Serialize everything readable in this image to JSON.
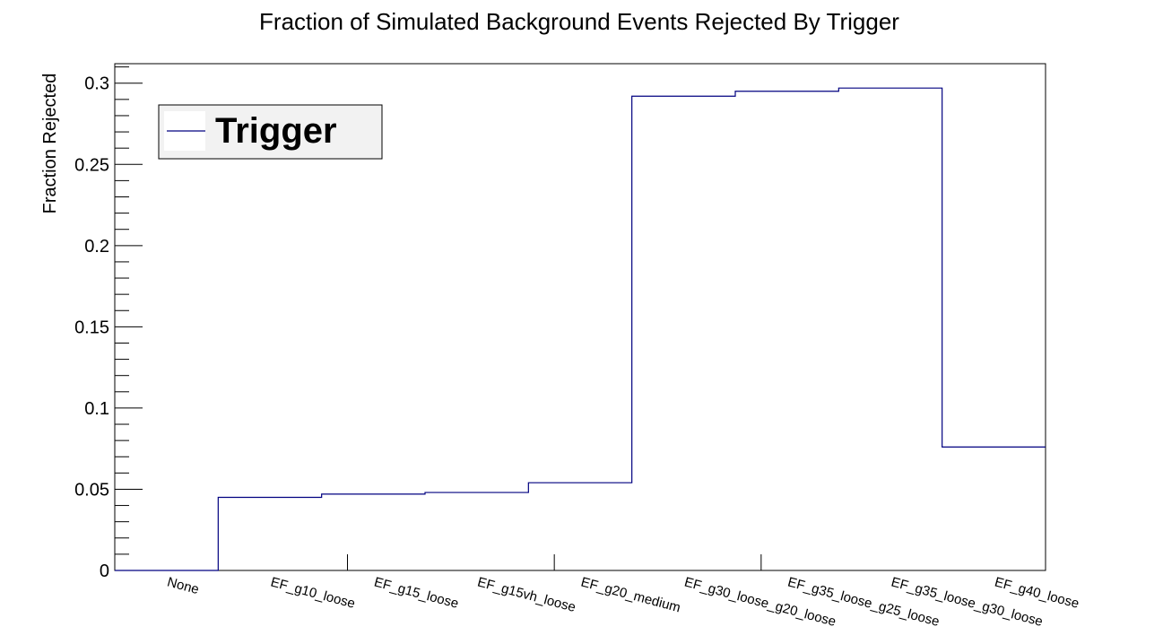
{
  "chart_data": {
    "type": "histogram",
    "title": "Fraction of Simulated Background Events Rejected By Trigger",
    "xlabel": "",
    "ylabel": "Fraction Rejected",
    "categories": [
      "None",
      "EF_g10_loose",
      "EF_g15_loose",
      "EF_g15vh_loose",
      "EF_g20_medium",
      "EF_g30_loose_g20_loose",
      "EF_g35_loose_g25_loose",
      "EF_g35_loose_g30_loose",
      "EF_g40_loose"
    ],
    "series": [
      {
        "name": "Trigger",
        "values": [
          0,
          0.045,
          0.047,
          0.048,
          0.054,
          0.292,
          0.295,
          0.297,
          0.076
        ],
        "color": "#000080"
      }
    ],
    "ylim": [
      0,
      0.312
    ],
    "yticks": [
      0,
      0.05,
      0.1,
      0.15,
      0.2,
      0.25,
      0.3
    ],
    "ytick_labels": [
      "0",
      "0.05",
      "0.1",
      "0.15",
      "0.2",
      "0.25",
      "0.3"
    ],
    "grid": false,
    "legend": {
      "placement": "top-left",
      "label": "Trigger"
    }
  }
}
